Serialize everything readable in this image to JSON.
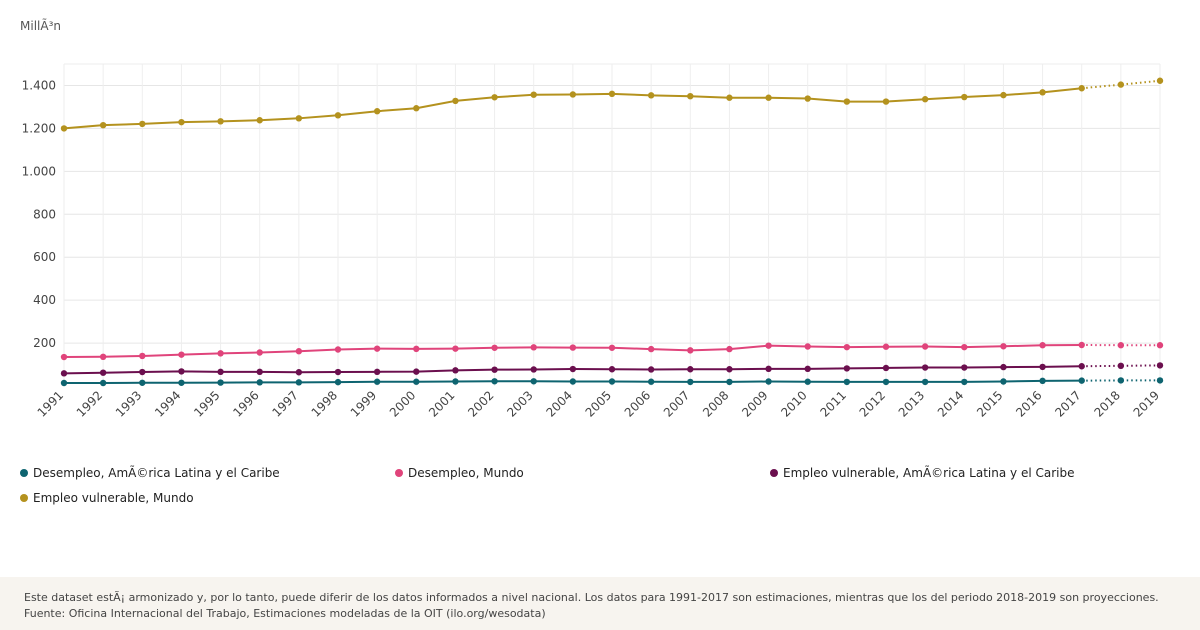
{
  "chart_data": {
    "type": "line",
    "ylabel": "MillÃ³n",
    "ylim": [
      0,
      1500
    ],
    "yticks": [
      200,
      400,
      600,
      800,
      1000,
      1200,
      1400
    ],
    "ytick_labels": [
      "200",
      "400",
      "600",
      "800",
      "1.000",
      "1.200",
      "1.400"
    ],
    "x": [
      1991,
      1992,
      1993,
      1994,
      1995,
      1996,
      1997,
      1998,
      1999,
      2000,
      2001,
      2002,
      2003,
      2004,
      2005,
      2006,
      2007,
      2008,
      2009,
      2010,
      2011,
      2012,
      2013,
      2014,
      2015,
      2016,
      2017,
      2018,
      2019
    ],
    "projection_from": 2017,
    "grid": true,
    "legend_position": "bottom",
    "series": [
      {
        "name": "Desempleo, AmÃ©rica Latina y el Caribe",
        "color": "#0e6470",
        "values": [
          14,
          14,
          15,
          15,
          16,
          17,
          17,
          18,
          20,
          20,
          21,
          22,
          22,
          21,
          21,
          20,
          19,
          19,
          21,
          20,
          19,
          19,
          19,
          19,
          21,
          24,
          25,
          26,
          26
        ]
      },
      {
        "name": "Desempleo, Mundo",
        "color": "#e0447b",
        "values": [
          135,
          136,
          140,
          146,
          152,
          156,
          162,
          170,
          174,
          173,
          174,
          178,
          180,
          179,
          178,
          172,
          166,
          172,
          188,
          184,
          181,
          183,
          184,
          181,
          185,
          190,
          191,
          190,
          190
        ]
      },
      {
        "name": "Empleo vulnerable, AmÃ©rica Latina y el Caribe",
        "color": "#6b0f4e",
        "values": [
          59,
          62,
          65,
          68,
          66,
          66,
          64,
          65,
          66,
          67,
          73,
          76,
          77,
          79,
          78,
          77,
          78,
          78,
          80,
          80,
          82,
          84,
          86,
          86,
          88,
          89,
          92,
          94,
          96
        ]
      },
      {
        "name": "Empleo vulnerable, Mundo",
        "color": "#b4921e",
        "values": [
          1200,
          1215,
          1221,
          1229,
          1233,
          1238,
          1247,
          1261,
          1280,
          1294,
          1328,
          1345,
          1357,
          1358,
          1361,
          1354,
          1350,
          1343,
          1343,
          1339,
          1325,
          1325,
          1336,
          1346,
          1355,
          1368,
          1387,
          1404,
          1422
        ]
      }
    ]
  },
  "footer": {
    "note": "Este dataset estÃ¡ armonizado y, por lo tanto, puede diferir de los datos informados a nivel nacional. Los datos para 1991-2017 son estimaciones, mientras que los del periodo 2018-2019 son proyecciones.",
    "source": "Fuente: Oficina Internacional del Trabajo, Estimaciones modeladas de la OIT (ilo.org/wesodata)"
  }
}
